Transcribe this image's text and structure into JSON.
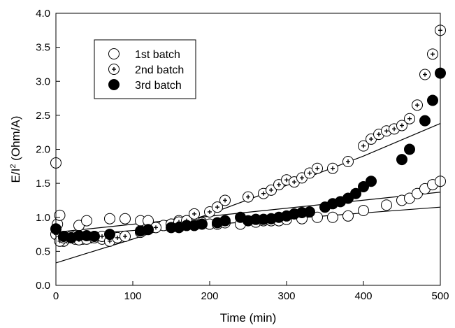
{
  "chart_data": {
    "type": "scatter",
    "xlabel": "Time (min)",
    "ylabel_main": "E/I",
    "ylabel_sup": "2",
    "ylabel_rest": " (Ohm/A)",
    "xlim": [
      0,
      500
    ],
    "ylim": [
      0,
      4
    ],
    "xticks": [
      0,
      100,
      200,
      300,
      400,
      500
    ],
    "yticks": [
      0.0,
      0.5,
      1.0,
      1.5,
      2.0,
      2.5,
      3.0,
      3.5,
      4.0
    ],
    "xtick_labels": [
      "0",
      "100",
      "200",
      "300",
      "400",
      "500"
    ],
    "ytick_labels": [
      "0.0",
      "0.5",
      "1.0",
      "1.5",
      "2.0",
      "2.5",
      "3.0",
      "3.5",
      "4.0"
    ],
    "legend_position": "top-left",
    "grid": false,
    "series": [
      {
        "name": "1st batch",
        "marker": "open-circle",
        "x": [
          0,
          2,
          5,
          10,
          15,
          20,
          25,
          30,
          35,
          40,
          45,
          50,
          60,
          70,
          80,
          90,
          110,
          120,
          140,
          150,
          160,
          170,
          180,
          190,
          200,
          210,
          220,
          240,
          260,
          270,
          280,
          290,
          300,
          320,
          340,
          360,
          380,
          400,
          430,
          450,
          460,
          470,
          480,
          490,
          500
        ],
        "y": [
          1.8,
          0.9,
          1.03,
          0.65,
          0.7,
          0.7,
          0.68,
          0.88,
          0.68,
          0.95,
          0.7,
          0.72,
          0.68,
          0.98,
          0.7,
          0.98,
          0.95,
          0.95,
          0.88,
          0.9,
          0.95,
          0.95,
          0.9,
          0.92,
          0.9,
          0.9,
          0.92,
          0.9,
          0.93,
          0.95,
          0.95,
          0.95,
          0.97,
          0.98,
          1.0,
          1.0,
          1.02,
          1.1,
          1.18,
          1.25,
          1.28,
          1.35,
          1.42,
          1.48,
          1.53
        ]
      },
      {
        "name": "2nd batch",
        "marker": "circle-plus",
        "x": [
          0,
          5,
          10,
          20,
          30,
          40,
          50,
          60,
          70,
          80,
          90,
          110,
          130,
          150,
          160,
          170,
          180,
          200,
          210,
          220,
          250,
          270,
          280,
          290,
          300,
          310,
          320,
          330,
          340,
          360,
          380,
          400,
          410,
          420,
          430,
          440,
          450,
          460,
          470,
          480,
          490,
          500
        ],
        "y": [
          0.75,
          0.65,
          0.7,
          0.72,
          0.67,
          0.68,
          0.7,
          0.72,
          0.65,
          0.7,
          0.72,
          0.78,
          0.85,
          0.9,
          0.93,
          0.95,
          1.05,
          1.08,
          1.15,
          1.25,
          1.3,
          1.35,
          1.4,
          1.48,
          1.55,
          1.52,
          1.58,
          1.65,
          1.72,
          1.72,
          1.82,
          2.05,
          2.15,
          2.22,
          2.27,
          2.3,
          2.35,
          2.45,
          2.65,
          3.1,
          3.4,
          3.75
        ]
      },
      {
        "name": "3rd batch",
        "marker": "filled-circle",
        "x": [
          0,
          10,
          20,
          30,
          40,
          50,
          70,
          110,
          120,
          150,
          160,
          170,
          180,
          190,
          210,
          220,
          240,
          250,
          260,
          270,
          280,
          290,
          300,
          310,
          320,
          330,
          350,
          360,
          370,
          380,
          390,
          400,
          410,
          450,
          460,
          480,
          490,
          500
        ],
        "y": [
          0.83,
          0.72,
          0.7,
          0.73,
          0.73,
          0.72,
          0.75,
          0.8,
          0.82,
          0.85,
          0.85,
          0.88,
          0.88,
          0.9,
          0.92,
          0.95,
          1.0,
          0.95,
          0.97,
          0.97,
          0.98,
          1.0,
          1.02,
          1.05,
          1.07,
          1.08,
          1.15,
          1.2,
          1.23,
          1.28,
          1.35,
          1.45,
          1.53,
          1.85,
          2.0,
          2.42,
          2.72,
          3.12
        ]
      }
    ],
    "fit_lines": [
      {
        "x": [
          0,
          500
        ],
        "y": [
          0.72,
          1.15
        ]
      },
      {
        "x": [
          0,
          500
        ],
        "y": [
          0.78,
          1.37
        ]
      },
      {
        "x": [
          0,
          100,
          200,
          300,
          400,
          500
        ],
        "y": [
          0.33,
          0.68,
          1.05,
          1.47,
          1.9,
          2.38
        ]
      }
    ]
  }
}
